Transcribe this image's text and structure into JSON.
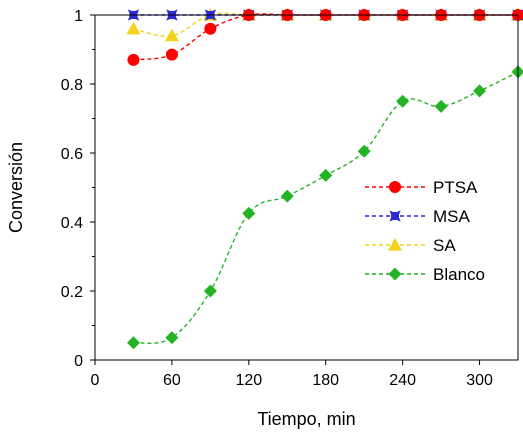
{
  "chart_data": {
    "type": "line",
    "title": "",
    "xlabel": "Tiempo,  min",
    "ylabel": "Conversión",
    "xlim": [
      0,
      330
    ],
    "ylim": [
      0,
      1
    ],
    "x_ticks": [
      0,
      60,
      120,
      180,
      240,
      300
    ],
    "x_tick_labels": [
      "0",
      "60",
      "120",
      "180",
      "240",
      "300"
    ],
    "y_ticks": [
      0,
      0.2,
      0.4,
      0.6,
      0.8,
      1
    ],
    "y_tick_labels": [
      "0",
      "0.2",
      "0.4",
      "0.6",
      "0.8",
      "1"
    ],
    "grid": false,
    "legend_position": "center-right",
    "series": [
      {
        "name": "PTSA",
        "color": "#ff0000",
        "marker": "circle",
        "x": [
          30,
          60,
          90,
          120,
          150,
          180,
          210,
          240,
          270,
          300,
          330
        ],
        "y": [
          0.87,
          0.885,
          0.96,
          1,
          1,
          1,
          1,
          1,
          1,
          1,
          1
        ]
      },
      {
        "name": "MSA",
        "color": "#2b2bd6",
        "marker": "star",
        "x": [
          30,
          60,
          90,
          120,
          150,
          180,
          210,
          240,
          270,
          300,
          330
        ],
        "y": [
          1,
          1,
          1,
          1,
          1,
          1,
          1,
          1,
          1,
          1,
          1
        ]
      },
      {
        "name": "SA",
        "color": "#f2d21a",
        "marker": "triangle",
        "x": [
          30,
          60,
          90,
          120,
          150,
          180,
          210,
          240,
          270,
          300,
          330
        ],
        "y": [
          0.96,
          0.94,
          1,
          1,
          1,
          1,
          1,
          1,
          1,
          1,
          1
        ]
      },
      {
        "name": "Blanco",
        "color": "#22b422",
        "marker": "diamond",
        "x": [
          30,
          60,
          90,
          120,
          150,
          180,
          210,
          240,
          270,
          300,
          330
        ],
        "y": [
          0.05,
          0.065,
          0.2,
          0.425,
          0.475,
          0.535,
          0.605,
          0.75,
          0.735,
          0.78,
          0.835
        ]
      }
    ]
  }
}
